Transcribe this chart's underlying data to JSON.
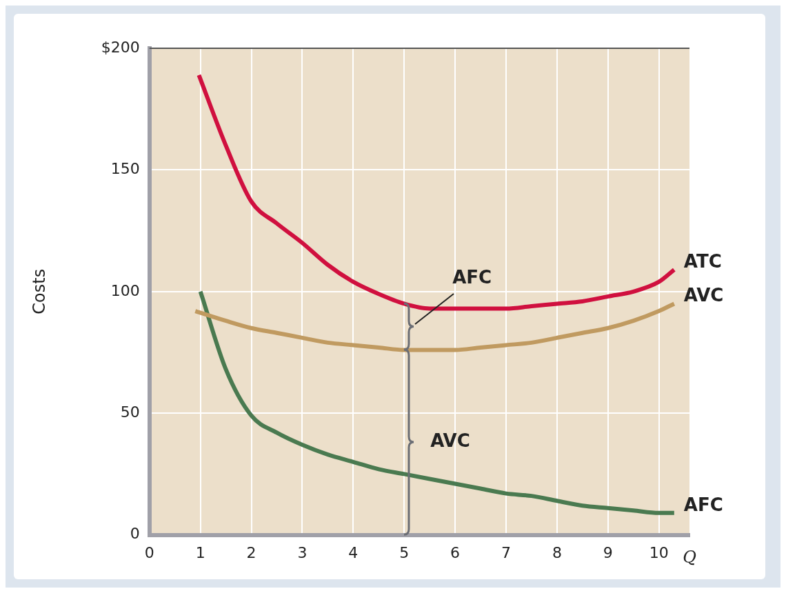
{
  "chart_data": {
    "type": "line",
    "xlabel": "Q",
    "ylabel": "Costs",
    "xlim": [
      0,
      10.6
    ],
    "ylim": [
      0,
      200
    ],
    "xticks": [
      0,
      1,
      2,
      3,
      4,
      5,
      6,
      7,
      8,
      9,
      10
    ],
    "yticks": [
      {
        "value": 0,
        "label": "0"
      },
      50,
      100,
      150,
      {
        "value": 200,
        "label": "$200"
      }
    ],
    "grid": true,
    "legend": false,
    "marker": "none",
    "line_style": "solid",
    "series": [
      {
        "name": "ATC",
        "color": "#d0103f",
        "x": [
          0.97,
          1.5,
          2,
          2.5,
          3,
          3.5,
          4,
          4.5,
          5,
          5.5,
          6,
          6.5,
          7,
          7.5,
          8,
          8.5,
          9,
          9.5,
          10,
          10.3
        ],
        "values": [
          189,
          160,
          137,
          128,
          120,
          111,
          104,
          99,
          95,
          93,
          93,
          93,
          93,
          94,
          95,
          96,
          98,
          100,
          104,
          109
        ]
      },
      {
        "name": "AVC",
        "color": "#c09a60",
        "x": [
          0.9,
          1.5,
          2,
          2.5,
          3,
          3.5,
          4,
          4.5,
          5,
          5.5,
          6,
          6.5,
          7,
          7.5,
          8,
          8.5,
          9,
          9.5,
          10,
          10.3
        ],
        "values": [
          92,
          88,
          85,
          83,
          81,
          79,
          78,
          77,
          76,
          76,
          76,
          77,
          78,
          79,
          81,
          83,
          85,
          88,
          92,
          95
        ]
      },
      {
        "name": "AFC",
        "color": "#4a7a50",
        "x": [
          1,
          1.5,
          2,
          2.5,
          3,
          3.5,
          4,
          4.5,
          5,
          5.5,
          6,
          6.5,
          7,
          7.5,
          8,
          8.5,
          9,
          9.5,
          10,
          10.3
        ],
        "values": [
          100,
          68,
          49,
          42,
          37,
          33,
          30,
          27,
          25,
          23,
          21,
          19,
          17,
          16,
          14,
          12,
          11,
          10,
          9,
          9
        ]
      }
    ],
    "annotations": [
      "AFC",
      "AVC"
    ]
  }
}
